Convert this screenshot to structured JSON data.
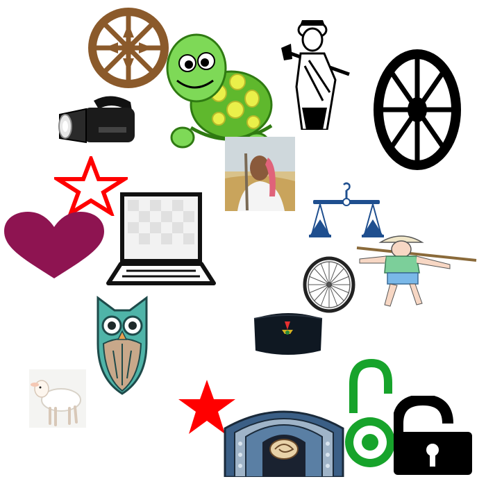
{
  "symbols": [
    {
      "name": "brown-spoked-wheel-icon",
      "icon": "wheel"
    },
    {
      "name": "green-turtle-icon",
      "icon": "turtle"
    },
    {
      "name": "farmer-with-axe-icon",
      "icon": "farmer"
    },
    {
      "name": "black-wheel-icon",
      "icon": "wheel"
    },
    {
      "name": "flashlight-icon",
      "icon": "torch"
    },
    {
      "name": "red-outline-star-icon",
      "icon": "star"
    },
    {
      "name": "farmer-photo",
      "icon": "photo"
    },
    {
      "name": "weighing-scale-icon",
      "icon": "balance"
    },
    {
      "name": "maroon-heart-icon",
      "icon": "heart"
    },
    {
      "name": "laptop-icon",
      "icon": "laptop"
    },
    {
      "name": "bicycle-wheel-icon",
      "icon": "wheel"
    },
    {
      "name": "farmer-with-hoe-icon",
      "icon": "farmer"
    },
    {
      "name": "owl-icon",
      "icon": "owl"
    },
    {
      "name": "black-cap-icon",
      "icon": "cap"
    },
    {
      "name": "lamb-icon",
      "icon": "lamb"
    },
    {
      "name": "red-solid-star-icon",
      "icon": "star"
    },
    {
      "name": "ornamental-emblem-icon",
      "icon": "emblem"
    },
    {
      "name": "green-open-lock-icon",
      "icon": "open-access"
    },
    {
      "name": "black-open-padlock-icon",
      "icon": "padlock"
    }
  ],
  "colors": {
    "brown_wheel": "#8b5a2b",
    "black": "#000000",
    "turtle_green": "#6fcf3a",
    "turtle_shell": "#5fb82d",
    "spots": "#eaf04a",
    "red_star": "#ff0000",
    "heart": "#8e1451",
    "scale_blue": "#1f4f8f",
    "owl_teal": "#4fb4a8",
    "open_access_green": "#17a32b",
    "emblem_blue": "#3b5f86"
  }
}
